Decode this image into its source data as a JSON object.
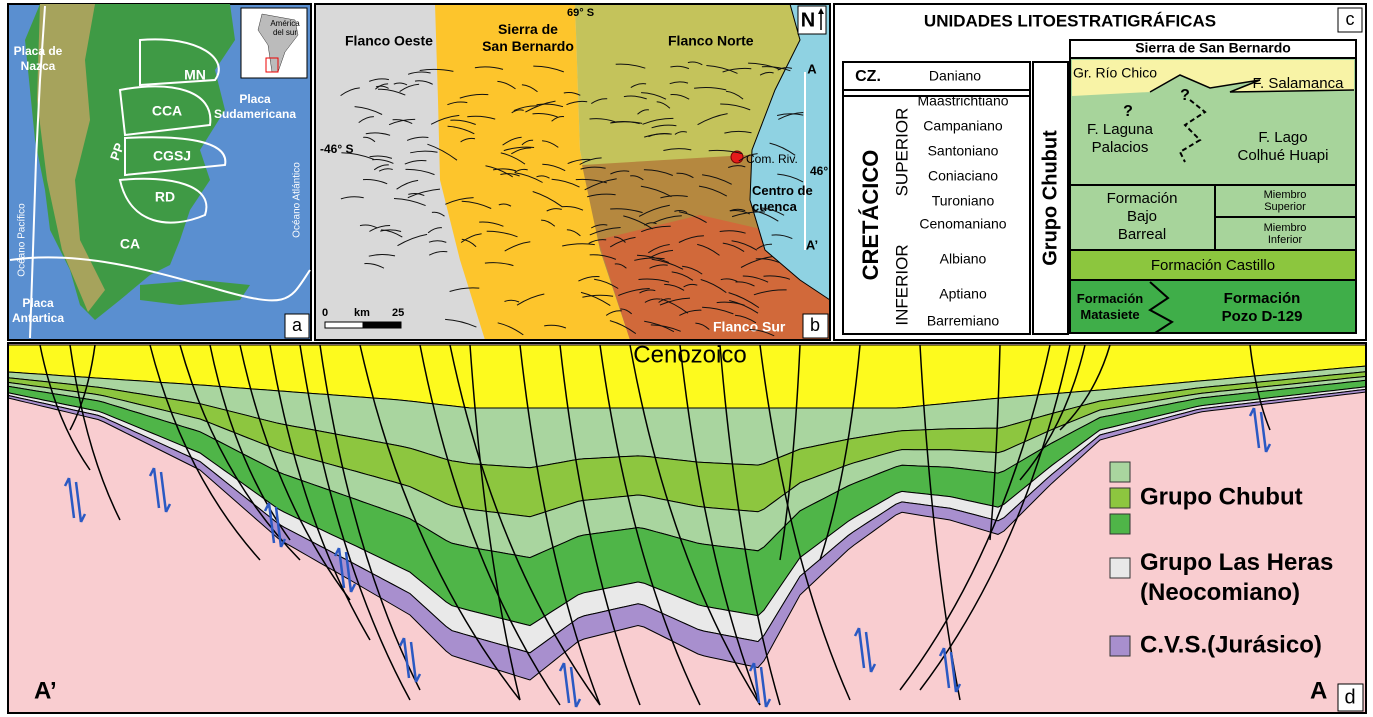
{
  "panel_a": {
    "placa_nazca": [
      "Placa de",
      "Nazca"
    ],
    "inset": [
      "América",
      "del sur"
    ],
    "mn": "MN",
    "cca": "CCA",
    "pp": "PP",
    "cgsj": "CGSJ",
    "placa_sudamericana": [
      "Placa",
      "Sudamericana"
    ],
    "rd": "RD",
    "oceano_atlantico": "Océano Atlántico",
    "oceano_pacifico": "Océano Pacífico",
    "ca": "CA",
    "placa_antartica": [
      "Placa",
      "Antartica"
    ],
    "label": "a"
  },
  "panel_b": {
    "flanco_oeste": "Flanco Oeste",
    "sierra": [
      "Sierra de",
      "San Bernardo"
    ],
    "lon": "69° S",
    "flanco_norte": "Flanco Norte",
    "north": "N",
    "a_top": "A",
    "lat_left": "-46° S",
    "lat_right": "46°",
    "com_riv": "Com. Riv.",
    "centro": [
      "Centro de",
      "cuenca"
    ],
    "a_bottom": "A’",
    "scale": [
      "0",
      "km",
      "25"
    ],
    "flanco_sur": "Flanco Sur",
    "label": "b"
  },
  "panel_c": {
    "title": "UNIDADES LITOESTRATIGRÁFICAS",
    "label": "c",
    "header": "Sierra de San Bernardo",
    "cz": "CZ.",
    "daniano": "Daniano",
    "cretacico": "CRETÁCICO",
    "superior": "SUPERIOR",
    "inferior": "INFERIOR",
    "stages": [
      "Maastrichtiano",
      "Campaniano",
      "Santoniano",
      "Coniaciano",
      "Turoniano",
      "Cenomaniano",
      "Albiano",
      "Aptiano",
      "Barremiano"
    ],
    "grupo": "Grupo Chubut",
    "units": {
      "rio_chico": "Gr. Río Chico",
      "salamanca": "F. Salamanca",
      "question": "?",
      "laguna": [
        "F. Laguna",
        "Palacios"
      ],
      "colhue": [
        "F. Lago",
        "Colhué Huapi"
      ],
      "bajo_barreal": [
        "Formación",
        "Bajo",
        "Barreal"
      ],
      "miembro_superior": [
        "Miembro",
        "Superior"
      ],
      "miembro_inferior": [
        "Miembro",
        "Inferior"
      ],
      "castillo": "Formación Castillo",
      "matasiete": [
        "Formación",
        "Matasiete"
      ],
      "pozo": [
        "Formación",
        "Pozo D-129"
      ]
    }
  },
  "panel_d": {
    "cenozoico": "Cenozoico",
    "legend": {
      "chubut": "Grupo Chubut",
      "las_heras": [
        "Grupo Las Heras",
        "(Neocomiano)"
      ],
      "cvs": "C.V.S.(Jurásico)"
    },
    "left": "A’",
    "right": "A",
    "label": "d"
  }
}
